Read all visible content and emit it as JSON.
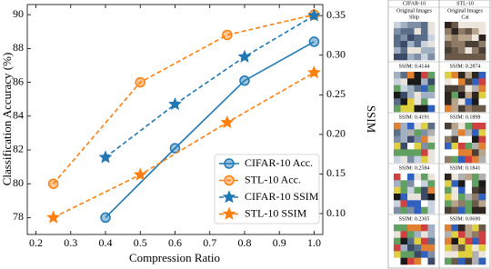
{
  "chart_data": {
    "type": "line",
    "x_label": "Compression Ratio",
    "y_label": "Classification Accuracy (%)",
    "y2_label": "SSIM",
    "xlim": [
      0.175,
      1.025
    ],
    "xticks": [
      0.2,
      0.3,
      0.4,
      0.5,
      0.6,
      0.7,
      0.8,
      0.9,
      {
        "value": 1.0,
        "label": "1.0"
      }
    ],
    "ylim": [
      77.0,
      90.6
    ],
    "yticks": [
      78,
      80,
      82,
      84,
      86,
      88,
      90
    ],
    "y2lim": [
      0.0736,
      0.364
    ],
    "y2ticks": [
      {
        "value": 0.1,
        "label": "0.10"
      },
      0.15,
      {
        "value": 0.2,
        "label": "0.20"
      },
      0.25,
      {
        "value": 0.3,
        "label": "0.30"
      },
      0.35
    ],
    "legend": "lower right",
    "series": [
      {
        "name": "CIFAR-10 Acc.",
        "color": "#1f77b4",
        "marker": "circle",
        "linestyle": "solid",
        "x": [
          0.4,
          0.6,
          0.8,
          1.0
        ],
        "values": [
          78.0,
          82.1,
          86.1,
          88.4
        ]
      },
      {
        "name": "STL-10 Acc.",
        "color": "#ff7f0e",
        "marker": "circle",
        "linestyle": "dashed",
        "x": [
          0.25,
          0.5,
          0.75,
          1.0
        ],
        "values": [
          80.0,
          86.0,
          88.8,
          90.0
        ]
      },
      {
        "name": "CIFAR-10 SSIM",
        "color": "#1f77b4",
        "marker": "star",
        "linestyle": "dashed",
        "axis": "y2",
        "x": [
          0.4,
          0.6,
          0.8,
          1.0
        ],
        "values": [
          0.171,
          0.238,
          0.298,
          0.35
        ]
      },
      {
        "name": "STL-10 SSIM",
        "color": "#ff7f0e",
        "marker": "star",
        "linestyle": "dashed",
        "axis": "y2",
        "x": [
          0.25,
          0.5,
          0.75,
          1.0
        ],
        "values": [
          0.095,
          0.149,
          0.215,
          0.278
        ]
      }
    ]
  },
  "image_panel": {
    "columns": [
      "CIFAR-10",
      "STL-10"
    ],
    "originals": [
      {
        "heading": "Original Images",
        "label": "Ship"
      },
      {
        "heading": "Original Images",
        "label": "Cat"
      }
    ],
    "rows": [
      [
        "SSIM: 0.4144",
        "SSIM: 0.2874"
      ],
      [
        "SSIM: 0.4191",
        "SSIM: 0.1898"
      ],
      [
        "SSIM: 0.2584",
        "SSIM: 0.1841"
      ],
      [
        "SSIM: 0.2305",
        "SSIM: 0.0690"
      ]
    ]
  }
}
